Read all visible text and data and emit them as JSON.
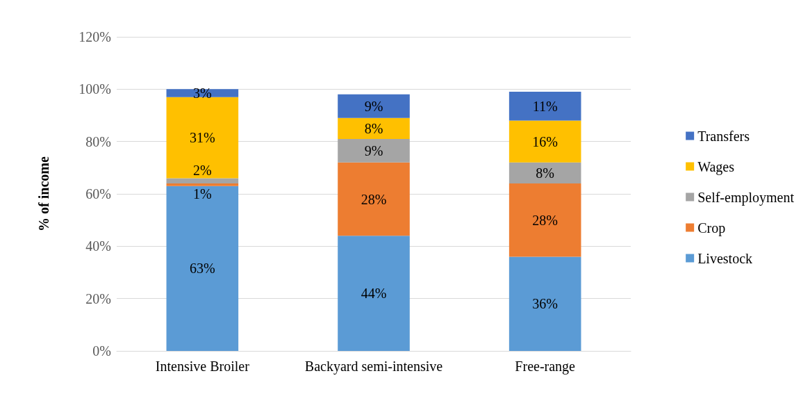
{
  "chart_data": {
    "type": "bar",
    "stacked": true,
    "ylabel": "% of income",
    "categories": [
      "Intensive Broiler",
      "Backyard semi-intensive",
      "Free-range"
    ],
    "series": [
      {
        "name": "Livestock",
        "color": "#5b9bd5",
        "values": [
          63,
          44,
          36
        ],
        "value_labels": [
          "63%",
          "44%",
          "36%"
        ]
      },
      {
        "name": "Crop",
        "color": "#ed7d31",
        "values": [
          1,
          28,
          28
        ],
        "value_labels": [
          "1%",
          "28%",
          "28%"
        ]
      },
      {
        "name": "Self-employment",
        "color": "#a5a5a5",
        "values": [
          2,
          9,
          8
        ],
        "value_labels": [
          "2%",
          "9%",
          "8%"
        ]
      },
      {
        "name": "Wages",
        "color": "#ffc000",
        "values": [
          31,
          8,
          16
        ],
        "value_labels": [
          "31%",
          "8%",
          "16%"
        ]
      },
      {
        "name": "Transfers",
        "color": "#4472c4",
        "values": [
          3,
          9,
          11
        ],
        "value_labels": [
          "3%",
          "9%",
          "11%"
        ]
      }
    ],
    "ylim": [
      0,
      120
    ],
    "yticks": [
      {
        "value": 0,
        "label": "0%"
      },
      {
        "value": 20,
        "label": "20%"
      },
      {
        "value": 40,
        "label": "40%"
      },
      {
        "value": 60,
        "label": "60%"
      },
      {
        "value": 80,
        "label": "80%"
      },
      {
        "value": 100,
        "label": "100%"
      },
      {
        "value": 120,
        "label": "120%"
      }
    ],
    "grid": "y",
    "legend": "right"
  }
}
